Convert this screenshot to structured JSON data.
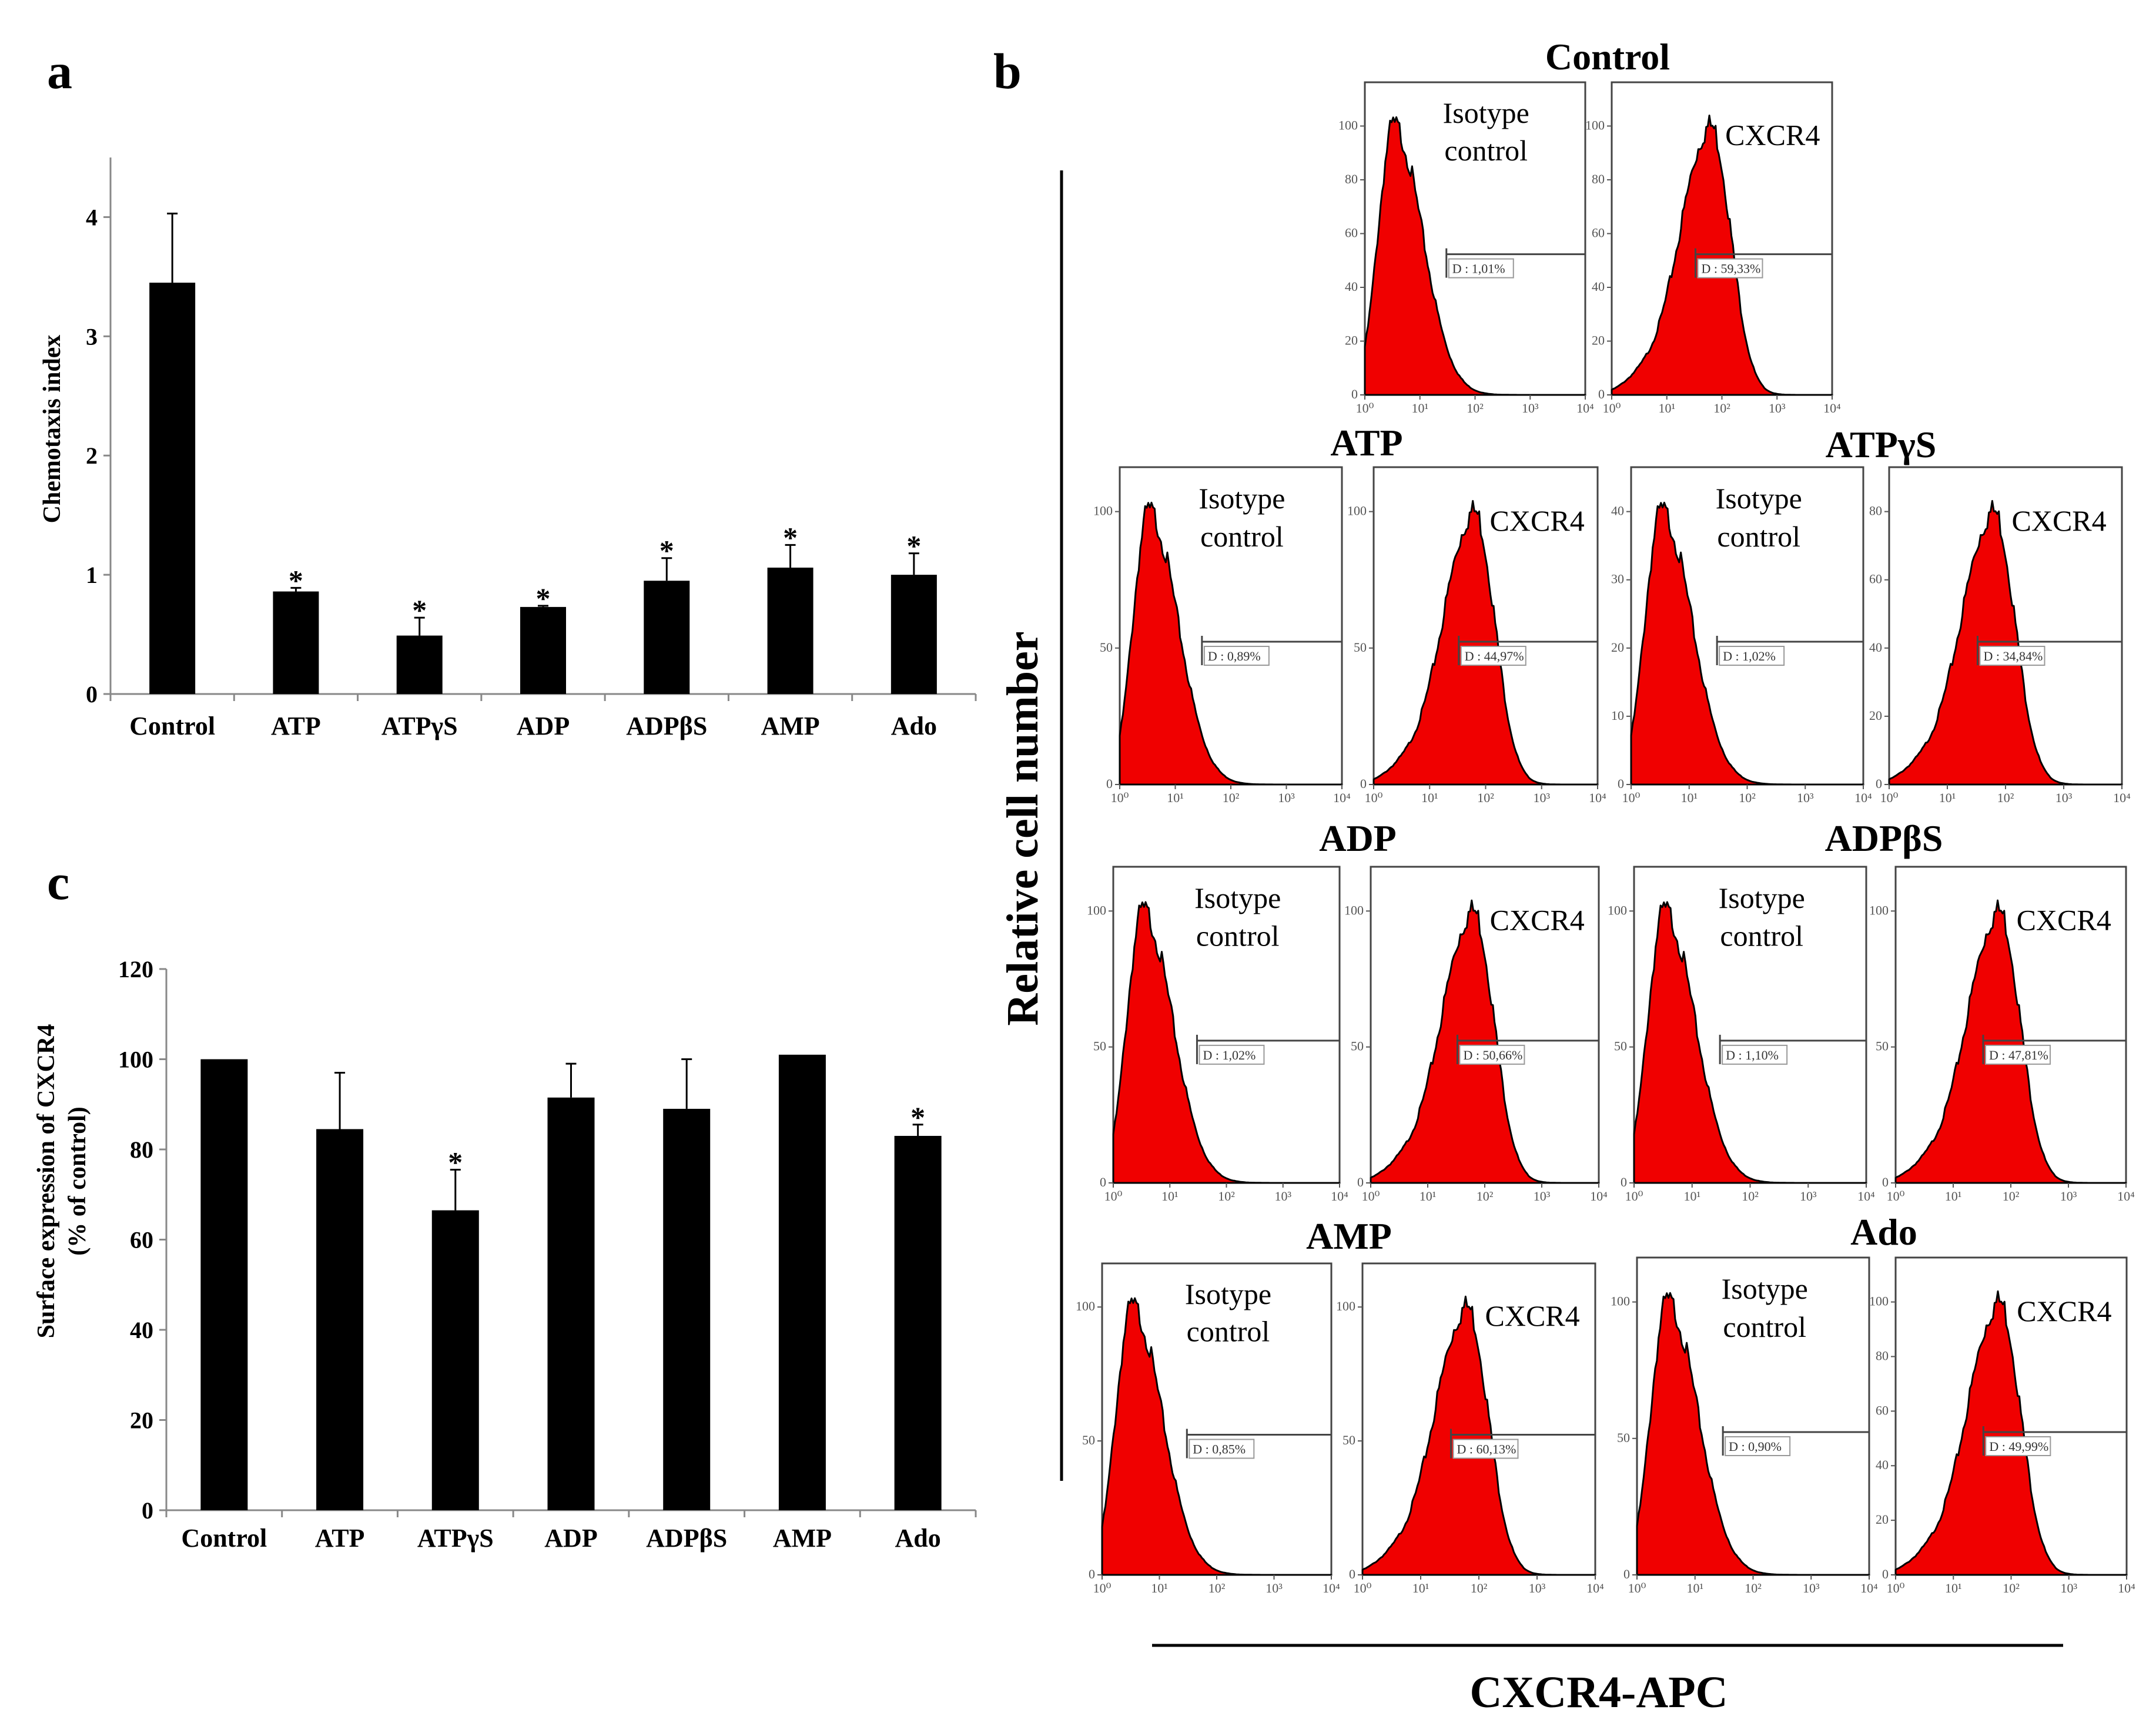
{
  "figure": {
    "panel_labels": [
      "a",
      "b",
      "c"
    ],
    "b_axis_y": "Relative cell number",
    "b_axis_x": "CXCR4-APC"
  },
  "chart_data": [
    {
      "id": "a",
      "type": "bar",
      "title": "",
      "xlabel": "",
      "ylabel": "Chemotaxis index",
      "categories": [
        "Control",
        "ATP",
        "ATPγS",
        "ADP",
        "ADPβS",
        "AMP",
        "Ado"
      ],
      "values": [
        3.45,
        0.86,
        0.49,
        0.73,
        0.95,
        1.06,
        1.0
      ],
      "errors": [
        0.58,
        0.03,
        0.15,
        0.01,
        0.19,
        0.19,
        0.18
      ],
      "significant": [
        false,
        true,
        true,
        true,
        true,
        true,
        true
      ],
      "significance_marker": "*",
      "ylim": [
        0,
        4.5
      ],
      "yticks": [
        0,
        1,
        2,
        3,
        4
      ]
    },
    {
      "id": "c",
      "type": "bar",
      "title": "",
      "xlabel": "",
      "ylabel": "Surface expression of CXCR4",
      "ylabel2": "(% of control)",
      "categories": [
        "Control",
        "ATP",
        "ATPγS",
        "ADP",
        "ADPβS",
        "AMP",
        "Ado"
      ],
      "values": [
        100,
        84.5,
        66.5,
        91.5,
        89,
        101,
        83
      ],
      "errors": [
        0,
        12.5,
        9,
        7.5,
        11,
        0,
        2.5
      ],
      "significant": [
        false,
        false,
        true,
        false,
        false,
        false,
        true
      ],
      "significance_marker": "*",
      "ylim": [
        0,
        120
      ],
      "yticks": [
        0,
        20,
        40,
        60,
        80,
        100,
        120
      ]
    },
    {
      "id": "b",
      "type": "histogram",
      "xscale": "log",
      "xticks": [
        "10⁰",
        "10¹",
        "10²",
        "10³",
        "10⁴"
      ],
      "conditions": [
        {
          "name": "Control",
          "isotype": {
            "label1": "Isotype",
            "label2": "control",
            "gate": "D : 1,01%",
            "ymax": 100,
            "yticks": [
              "0",
              "20",
              "40",
              "60",
              "80",
              "100"
            ]
          },
          "cxcr4": {
            "label1": "CXCR4",
            "label2": "",
            "gate": "D : 59,33%",
            "ymax": 100,
            "yticks": [
              "0",
              "20",
              "40",
              "60",
              "80",
              "100"
            ]
          }
        },
        {
          "name": "ATP",
          "isotype": {
            "label1": "Isotype",
            "label2": "control",
            "gate": "D : 0,89%",
            "ymax": 100,
            "yticks": [
              "0",
              "50",
              "100"
            ]
          },
          "cxcr4": {
            "label1": "CXCR4",
            "label2": "",
            "gate": "D : 44,97%",
            "ymax": 100,
            "yticks": [
              "0",
              "50",
              "100"
            ]
          }
        },
        {
          "name": "ATPγS",
          "isotype": {
            "label1": "Isotype",
            "label2": "control",
            "gate": "D : 1,02%",
            "ymax": 40,
            "yticks": [
              "0",
              "10",
              "20",
              "30",
              "40"
            ]
          },
          "cxcr4": {
            "label1": "CXCR4",
            "label2": "",
            "gate": "D : 34,84%",
            "ymax": 80,
            "yticks": [
              "0",
              "20",
              "40",
              "60",
              "80"
            ]
          }
        },
        {
          "name": "ADP",
          "isotype": {
            "label1": "Isotype",
            "label2": "control",
            "gate": "D : 1,02%",
            "ymax": 100,
            "yticks": [
              "0",
              "50",
              "100"
            ]
          },
          "cxcr4": {
            "label1": "CXCR4",
            "label2": "",
            "gate": "D : 50,66%",
            "ymax": 100,
            "yticks": [
              "0",
              "50",
              "100"
            ]
          }
        },
        {
          "name": "ADPβS",
          "isotype": {
            "label1": "Isotype",
            "label2": "control",
            "gate": "D : 1,10%",
            "ymax": 100,
            "yticks": [
              "0",
              "50",
              "100"
            ]
          },
          "cxcr4": {
            "label1": "CXCR4",
            "label2": "",
            "gate": "D : 47,81%",
            "ymax": 100,
            "yticks": [
              "0",
              "50",
              "100"
            ]
          }
        },
        {
          "name": "AMP",
          "isotype": {
            "label1": "Isotype",
            "label2": "control",
            "gate": "D : 0,85%",
            "ymax": 100,
            "yticks": [
              "0",
              "50",
              "100"
            ]
          },
          "cxcr4": {
            "label1": "CXCR4",
            "label2": "",
            "gate": "D : 60,13%",
            "ymax": 100,
            "yticks": [
              "0",
              "50",
              "100"
            ]
          }
        },
        {
          "name": "Ado",
          "isotype": {
            "label1": "Isotype",
            "label2": "control",
            "gate": "D : 0,90%",
            "ymax": 100,
            "yticks": [
              "0",
              "50",
              "100"
            ]
          },
          "cxcr4": {
            "label1": "CXCR4",
            "label2": "",
            "gate": "D : 49,99%",
            "ymax": 100,
            "yticks": [
              "0",
              "20",
              "40",
              "60",
              "80",
              "100"
            ]
          }
        }
      ]
    }
  ]
}
